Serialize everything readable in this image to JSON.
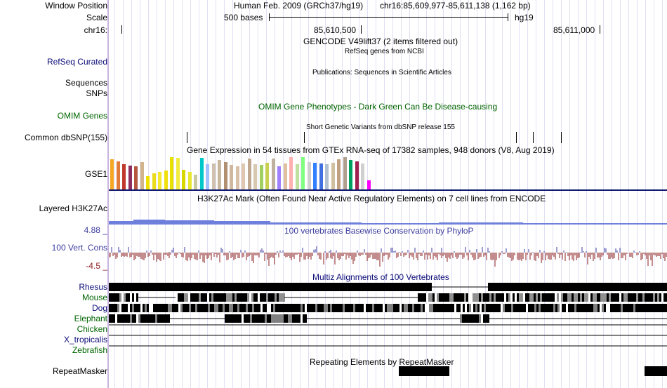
{
  "colors": {
    "navy_label": "#0c0c78",
    "green_label": "#006400",
    "conservation_blue": "#3c3ca0",
    "conservation_red": "#8b1c1c",
    "h3k27ac": "#6f7fdc",
    "gtex_divider": "#101870"
  },
  "header": {
    "window_position_label": "Window Position",
    "assembly": "Human Feb. 2009 (GRCh37/hg19)",
    "position": "chr16:85,609,977-85,611,138 (1,162 bp)",
    "scale_label": "Scale",
    "scale_bases": "500 bases",
    "scale_db": "hg19",
    "chrom_label": "chr16:",
    "tick_left": "85,610,500",
    "tick_right": "85,611,000"
  },
  "tracks": {
    "gencode_title": "GENCODE V49lift37 (2 items filtered out)",
    "refseq_label": "RefSeq Curated",
    "refseq_title": "RefSeq genes from NCBI",
    "publications_title": "Publications: Sequences in Scientific Articles",
    "sequences_label": "Sequences",
    "snps_label": "SNPs",
    "omim_label": "OMIM Genes",
    "omim_title": "OMIM Gene Phenotypes - Dark Green Can Be Disease-causing",
    "dbsnp_title": "Short Genetic Variants from dbSNP release 155",
    "dbsnp_label": "Common dbSNP(155)",
    "gtex_title": "Gene Expression in 54 tissues from GTEx RNA-seq of 17382 samples, 948 donors (V8, Aug 2019)",
    "gtex_label": "GSE1",
    "h3k27ac_label": "Layered H3K27Ac",
    "h3k27ac_title": "H3K27Ac Mark (Often Found Near Active Regulatory Elements) on 7 cell lines from ENCODE",
    "cons_max": "4.88 _",
    "cons_label": "100 Vert. Cons",
    "cons_min": "-4.5 _",
    "cons_title": "100 vertebrates Basewise Conservation by PhyloP",
    "multiz_title": "Multiz Alignments of 100 Vertebrates",
    "species": [
      "Rhesus",
      "Mouse",
      "Dog",
      "Elephant",
      "Chicken",
      "X_tropicalis",
      "Zebrafish"
    ],
    "repeat_title": "Repeating Elements by RepeatMasker",
    "repeat_label": "RepeatMasker"
  },
  "gtex_bars": {
    "colors": [
      "#f5a623",
      "#e07b39",
      "#c0392b",
      "#8e2d5e",
      "#b5563f",
      "#d2b48c",
      "#f0e000",
      "#eadc1c",
      "#f4e830",
      "#f0e010",
      "#e8e000",
      "#f2ec40",
      "#d8d800",
      "#e8e830",
      "#c8c8a0",
      "#00c8c8",
      "#a0c0ff",
      "#d0c0b0",
      "#c8b8a0",
      "#b09070",
      "#d0b8a0",
      "#d8c0a8",
      "#e0c8b0",
      "#c0a890",
      "#d8c8b0",
      "#a0d060",
      "#c8d050",
      "#c0b0a0",
      "#a080ff",
      "#e0c0a0",
      "#ffb0b0",
      "#c0e0a0",
      "#80ff80",
      "#d0d0d0",
      "#3080ff",
      "#4070e0",
      "#b0c0d0",
      "#d0c0a0",
      "#c0a080",
      "#b0a090",
      "#00a060",
      "#a02050",
      "#d0d0d0",
      "#ff00ff"
    ],
    "values": [
      0.93,
      0.87,
      0.78,
      0.74,
      0.72,
      0.85,
      0.42,
      0.5,
      0.55,
      0.58,
      1.0,
      0.98,
      0.6,
      0.55,
      0.45,
      0.97,
      0.78,
      0.8,
      0.92,
      0.84,
      0.76,
      0.72,
      0.81,
      0.95,
      0.78,
      0.76,
      0.82,
      0.95,
      0.72,
      0.8,
      0.99,
      0.78,
      0.99,
      0.85,
      0.82,
      0.8,
      0.78,
      0.82,
      0.93,
      1.0,
      0.92,
      0.88,
      0.8,
      0.28
    ]
  },
  "dbsnp_ticks": [
    0.14,
    0.35,
    0.73,
    0.76,
    0.81
  ],
  "repeat_blocks": [
    [
      0.52,
      0.61
    ],
    [
      0.96,
      1.0
    ]
  ]
}
